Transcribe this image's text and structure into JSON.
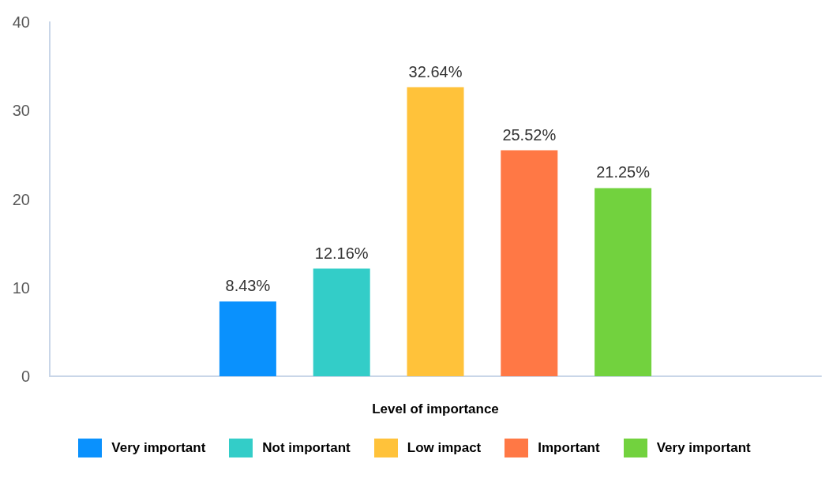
{
  "chart_data": {
    "type": "bar",
    "xlabel": "Level of importance",
    "categories": [
      null
    ],
    "series": [
      {
        "name": "Very important",
        "color": "#0a91fd",
        "values": [
          8.43
        ],
        "value_labels": [
          "8.43%"
        ]
      },
      {
        "name": "Not important",
        "color": "#33cdc8",
        "values": [
          12.16
        ],
        "value_labels": [
          "12.16%"
        ]
      },
      {
        "name": "Low impact",
        "color": "#ffc23a",
        "values": [
          32.64
        ],
        "value_labels": [
          "32.64%"
        ]
      },
      {
        "name": "Important",
        "color": "#ff7845",
        "values": [
          25.52
        ],
        "value_labels": [
          "25.52%"
        ]
      },
      {
        "name": "Very important",
        "color": "#72d23e",
        "values": [
          21.25
        ],
        "value_labels": [
          "21.25%"
        ]
      }
    ],
    "ylim": [
      0,
      40
    ],
    "yticks": [
      0,
      10,
      20,
      30,
      40
    ],
    "legend": "bottom"
  }
}
